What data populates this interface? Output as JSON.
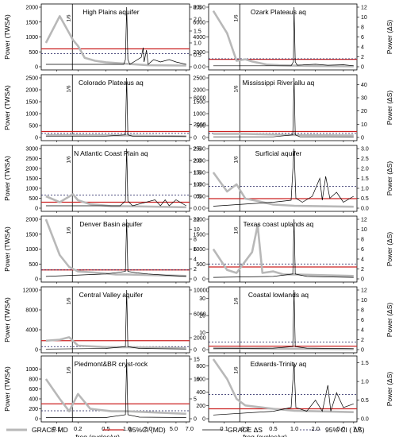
{
  "figure": {
    "xlabel": "freq (cycles/yr)",
    "left_ylabel": "Power (TWSA)",
    "right_ylabel": "Power (ΔS)",
    "x_ticks": [
      0.1,
      0.2,
      0.5,
      1.0,
      2.0,
      5.0,
      7.0
    ],
    "x_tick_labels": [
      "0.1",
      "0.2",
      "0.5",
      "1.0",
      "2.0",
      "5.0",
      "7.0"
    ],
    "vline_label": "1/6",
    "vline_freq": 0.1667,
    "colors": {
      "grace_md": "#b8b8b8",
      "ci_md": "#cc2222",
      "grace_ds": "#000000",
      "ci_ds": "#1a1a5a"
    }
  },
  "legend": {
    "items": [
      {
        "label": "GRACE MD",
        "style": "thick-gray"
      },
      {
        "label": "95%CI (MD)",
        "style": "red"
      },
      {
        "label": "GRACE ΔS",
        "style": "thin-black"
      },
      {
        "label": "95% CI ( ΔS)",
        "style": "dashed"
      }
    ]
  },
  "chart_data": [
    {
      "type": "line",
      "title": "High Plains aquifer",
      "left_ticks": [
        "0",
        "500",
        "1000",
        "1500",
        "2000"
      ],
      "left_max": 2000,
      "right_ticks": [
        "0.0",
        "0.5",
        "1.0",
        "1.5",
        "2.0",
        "2.5"
      ],
      "right_max": 2.5,
      "ci_md": 600,
      "ci_ds": 0.55,
      "md_points": [
        [
          0.07,
          800
        ],
        [
          0.11,
          1700
        ],
        [
          0.17,
          900
        ],
        [
          0.2,
          700
        ],
        [
          0.25,
          300
        ],
        [
          0.35,
          200
        ],
        [
          0.5,
          150
        ],
        [
          1.0,
          100
        ],
        [
          2,
          50
        ],
        [
          7,
          40
        ]
      ],
      "ds_points": [
        [
          0.07,
          0.1
        ],
        [
          0.15,
          0.1
        ],
        [
          0.3,
          0.1
        ],
        [
          0.9,
          0.1
        ],
        [
          0.95,
          0.3
        ],
        [
          0.99,
          2.5
        ],
        [
          1.03,
          0.3
        ],
        [
          1.1,
          0.1
        ],
        [
          1.6,
          0.4
        ],
        [
          1.7,
          0.8
        ],
        [
          1.75,
          0.2
        ],
        [
          1.9,
          0.7
        ],
        [
          2.0,
          0.1
        ],
        [
          2.4,
          0.3
        ],
        [
          3,
          0.2
        ],
        [
          4,
          0.3
        ],
        [
          5,
          0.2
        ],
        [
          7,
          0.1
        ]
      ]
    },
    {
      "type": "line",
      "title": "Ozark Plateaus aq",
      "left_ticks": [
        "0",
        "2000",
        "4000",
        "6000",
        "8000"
      ],
      "left_max": 8000,
      "right_ticks": [
        "0",
        "2",
        "4",
        "6",
        "8",
        "10",
        "12"
      ],
      "right_max": 12,
      "ci_md": 1000,
      "ci_ds": 1.6,
      "md_points": [
        [
          0.07,
          7500
        ],
        [
          0.11,
          4500
        ],
        [
          0.15,
          800
        ],
        [
          0.2,
          1000
        ],
        [
          0.25,
          700
        ],
        [
          0.4,
          300
        ],
        [
          0.6,
          200
        ],
        [
          1.0,
          150
        ],
        [
          2,
          100
        ],
        [
          7,
          50
        ]
      ],
      "ds_points": [
        [
          0.07,
          0.2
        ],
        [
          0.3,
          0.2
        ],
        [
          0.9,
          0.2
        ],
        [
          0.97,
          1
        ],
        [
          0.99,
          12
        ],
        [
          1.03,
          1
        ],
        [
          1.1,
          0.3
        ],
        [
          2,
          0.5
        ],
        [
          3,
          0.3
        ],
        [
          5,
          0.4
        ],
        [
          7,
          0.2
        ]
      ]
    },
    {
      "type": "line",
      "title": "Colorado Plateaus aq",
      "left_ticks": [
        "0",
        "500",
        "1000",
        "1500",
        "2000",
        "2500"
      ],
      "left_max": 2500,
      "right_ticks": [
        "0",
        "2000",
        "6000"
      ],
      "right_max": 9000,
      "ci_md": 250,
      "ci_ds": 600,
      "md_points": [
        [
          0.07,
          100
        ],
        [
          0.2,
          100
        ],
        [
          1.0,
          80
        ],
        [
          7,
          50
        ]
      ],
      "ds_points": [
        [
          0.07,
          200
        ],
        [
          0.5,
          200
        ],
        [
          0.95,
          400
        ],
        [
          0.99,
          9000
        ],
        [
          1.03,
          400
        ],
        [
          1.2,
          200
        ],
        [
          3,
          200
        ],
        [
          7,
          150
        ]
      ]
    },
    {
      "type": "line",
      "title": "Mississippi River allu aq",
      "left_ticks": [
        "0",
        "500",
        "1000",
        "1500",
        "2000",
        "2500"
      ],
      "left_max": 2500,
      "right_ticks": [
        "0",
        "10",
        "20",
        "30",
        "40"
      ],
      "right_max": 45,
      "ci_md": 250,
      "ci_ds": 3,
      "md_points": [
        [
          0.07,
          150
        ],
        [
          0.2,
          150
        ],
        [
          1.0,
          100
        ],
        [
          7,
          80
        ]
      ],
      "ds_points": [
        [
          0.07,
          0.5
        ],
        [
          0.5,
          0.5
        ],
        [
          0.95,
          2
        ],
        [
          0.99,
          45
        ],
        [
          1.03,
          2
        ],
        [
          1.2,
          0.5
        ],
        [
          3,
          0.5
        ],
        [
          7,
          0.4
        ]
      ]
    },
    {
      "type": "line",
      "title": "N Atlantic Coast Plain aq",
      "left_ticks": [
        "0",
        "500",
        "1000",
        "1500",
        "2000",
        "2500",
        "3000"
      ],
      "left_max": 3000,
      "right_ticks": [
        "0.0",
        "0.5",
        "1.0",
        "1.5",
        "2.0",
        "2.5"
      ],
      "right_max": 2.5,
      "ci_md": 300,
      "ci_ds": 0.55,
      "md_points": [
        [
          0.07,
          600
        ],
        [
          0.11,
          300
        ],
        [
          0.17,
          700
        ],
        [
          0.2,
          400
        ],
        [
          0.3,
          200
        ],
        [
          0.6,
          100
        ],
        [
          1,
          100
        ],
        [
          7,
          50
        ]
      ],
      "ds_points": [
        [
          0.07,
          0.1
        ],
        [
          0.8,
          0.1
        ],
        [
          0.95,
          0.3
        ],
        [
          0.99,
          2.5
        ],
        [
          1.03,
          0.3
        ],
        [
          1.2,
          0.1
        ],
        [
          2.5,
          0.35
        ],
        [
          3,
          0.1
        ],
        [
          3.5,
          0.35
        ],
        [
          4,
          0.1
        ],
        [
          5,
          0.35
        ],
        [
          7,
          0.1
        ]
      ]
    },
    {
      "type": "line",
      "title": "Surficial aquifer",
      "left_ticks": [
        "0",
        "500",
        "1000",
        "1500",
        "2000",
        "2500"
      ],
      "left_max": 2500,
      "right_ticks": [
        "0.0",
        "0.5",
        "1.0",
        "1.5",
        "2.0",
        "2.5",
        "3.0"
      ],
      "right_max": 3.0,
      "ci_md": 400,
      "ci_ds": 1.1,
      "md_points": [
        [
          0.07,
          1500
        ],
        [
          0.11,
          700
        ],
        [
          0.15,
          1000
        ],
        [
          0.2,
          400
        ],
        [
          0.3,
          300
        ],
        [
          0.5,
          150
        ],
        [
          1,
          100
        ],
        [
          7,
          60
        ]
      ],
      "ds_points": [
        [
          0.07,
          0.1
        ],
        [
          0.5,
          0.3
        ],
        [
          0.9,
          0.4
        ],
        [
          0.99,
          3.0
        ],
        [
          1.05,
          0.5
        ],
        [
          1.3,
          0.3
        ],
        [
          1.8,
          0.6
        ],
        [
          2.3,
          1.5
        ],
        [
          2.5,
          0.4
        ],
        [
          2.8,
          1.6
        ],
        [
          3.2,
          0.5
        ],
        [
          4,
          0.8
        ],
        [
          5,
          0.3
        ],
        [
          7,
          0.6
        ]
      ]
    },
    {
      "type": "line",
      "title": "Denver Basin aquifer",
      "left_ticks": [
        "0",
        "500",
        "1000",
        "1500",
        "2000"
      ],
      "left_max": 2000,
      "right_ticks": [
        "0",
        "2",
        "4",
        "6",
        "8",
        "10",
        "12"
      ],
      "right_max": 12,
      "ci_md": 300,
      "ci_ds": 1.8,
      "md_points": [
        [
          0.07,
          2000
        ],
        [
          0.11,
          800
        ],
        [
          0.15,
          400
        ],
        [
          0.2,
          250
        ],
        [
          0.4,
          200
        ],
        [
          0.7,
          150
        ],
        [
          1,
          150
        ],
        [
          7,
          100
        ]
      ],
      "ds_points": [
        [
          0.07,
          0.5
        ],
        [
          0.5,
          1.0
        ],
        [
          0.95,
          1.5
        ],
        [
          0.99,
          12
        ],
        [
          1.03,
          1.5
        ],
        [
          1.4,
          1.2
        ],
        [
          2,
          1.0
        ],
        [
          4,
          0.7
        ],
        [
          7,
          0.5
        ]
      ]
    },
    {
      "type": "line",
      "title": "Texas coast uplands aq",
      "left_ticks": [
        "0",
        "500",
        "1000",
        "1500",
        "2000"
      ],
      "left_max": 2000,
      "right_ticks": [
        "0",
        "2",
        "4",
        "6",
        "8",
        "10",
        "12"
      ],
      "right_max": 12,
      "ci_md": 400,
      "ci_ds": 3,
      "md_points": [
        [
          0.07,
          1000
        ],
        [
          0.11,
          300
        ],
        [
          0.15,
          200
        ],
        [
          0.25,
          900
        ],
        [
          0.3,
          1800
        ],
        [
          0.35,
          200
        ],
        [
          0.5,
          250
        ],
        [
          0.7,
          150
        ],
        [
          1,
          150
        ],
        [
          7,
          100
        ]
      ],
      "ds_points": [
        [
          0.07,
          0.3
        ],
        [
          0.5,
          0.5
        ],
        [
          0.95,
          1.0
        ],
        [
          0.99,
          12
        ],
        [
          1.03,
          1.0
        ],
        [
          1.5,
          0.5
        ],
        [
          3,
          0.4
        ],
        [
          7,
          0.3
        ]
      ]
    },
    {
      "type": "line",
      "title": "Central Valley aquifer",
      "left_ticks": [
        "0",
        "4000",
        "8000",
        "12000"
      ],
      "left_max": 12000,
      "right_ticks": [
        "0",
        "2000",
        "6000",
        "10000"
      ],
      "right_max": 10000,
      "ci_md": 1800,
      "ci_ds": 500,
      "md_points": [
        [
          0.07,
          1800
        ],
        [
          0.11,
          2000
        ],
        [
          0.15,
          2500
        ],
        [
          0.2,
          800
        ],
        [
          0.5,
          500
        ],
        [
          1,
          500
        ],
        [
          7,
          300
        ]
      ],
      "ds_points": [
        [
          0.07,
          100
        ],
        [
          0.5,
          200
        ],
        [
          0.95,
          500
        ],
        [
          0.99,
          10000
        ],
        [
          1.03,
          500
        ],
        [
          1.5,
          200
        ],
        [
          7,
          100
        ]
      ]
    },
    {
      "type": "line",
      "title": "Coastal lowlands aq",
      "left_ticks": [
        "0",
        "10",
        "20",
        "30"
      ],
      "left_max": 35,
      "right_ticks": [
        "0",
        "2",
        "4",
        "6",
        "8",
        "10",
        "12"
      ],
      "right_max": 12,
      "ci_md": 2,
      "ci_ds": 1.5,
      "md_points": [
        [
          0.07,
          0.8
        ],
        [
          0.2,
          0.7
        ],
        [
          0.5,
          0.5
        ],
        [
          1,
          0.5
        ],
        [
          7,
          0.3
        ]
      ],
      "ds_points": [
        [
          0.07,
          0.2
        ],
        [
          0.5,
          0.3
        ],
        [
          0.95,
          0.6
        ],
        [
          0.99,
          12
        ],
        [
          1.03,
          0.6
        ],
        [
          1.5,
          0.3
        ],
        [
          7,
          0.2
        ]
      ]
    },
    {
      "type": "line",
      "title": "Piedmont&BR cryst-rock",
      "left_ticks": [
        "0",
        "200",
        "400",
        "600",
        "800",
        "1000"
      ],
      "left_max": 1200,
      "right_ticks": [
        "0",
        "5",
        "10",
        "15"
      ],
      "right_max": 15,
      "ci_md": 300,
      "ci_ds": 2,
      "md_points": [
        [
          0.07,
          800
        ],
        [
          0.11,
          400
        ],
        [
          0.15,
          150
        ],
        [
          0.2,
          500
        ],
        [
          0.3,
          200
        ],
        [
          0.6,
          150
        ],
        [
          1,
          150
        ],
        [
          7,
          100
        ]
      ],
      "ds_points": [
        [
          0.07,
          0.3
        ],
        [
          0.5,
          0.3
        ],
        [
          0.95,
          1
        ],
        [
          0.99,
          15
        ],
        [
          1.03,
          1
        ],
        [
          1.5,
          0.4
        ],
        [
          7,
          0.3
        ]
      ]
    },
    {
      "type": "line",
      "title": "Edwards-Trinity aq",
      "left_ticks": [
        "0",
        "200",
        "400",
        "600",
        "800"
      ],
      "left_max": 900,
      "right_ticks": [
        "0.0",
        "0.5",
        "1.0",
        "1.5"
      ],
      "right_max": 1.6,
      "ci_md": 150,
      "ci_ds": 0.65,
      "md_points": [
        [
          0.07,
          900
        ],
        [
          0.11,
          600
        ],
        [
          0.15,
          300
        ],
        [
          0.2,
          200
        ],
        [
          0.5,
          150
        ],
        [
          1,
          120
        ],
        [
          7,
          100
        ]
      ],
      "ds_points": [
        [
          0.07,
          0.1
        ],
        [
          0.5,
          0.2
        ],
        [
          0.9,
          0.3
        ],
        [
          0.99,
          1.5
        ],
        [
          1.05,
          0.3
        ],
        [
          1.5,
          0.2
        ],
        [
          2,
          0.5
        ],
        [
          2.5,
          0.2
        ],
        [
          3,
          0.9
        ],
        [
          3.3,
          0.2
        ],
        [
          4,
          0.7
        ],
        [
          5,
          0.3
        ],
        [
          7,
          0.4
        ]
      ]
    }
  ]
}
